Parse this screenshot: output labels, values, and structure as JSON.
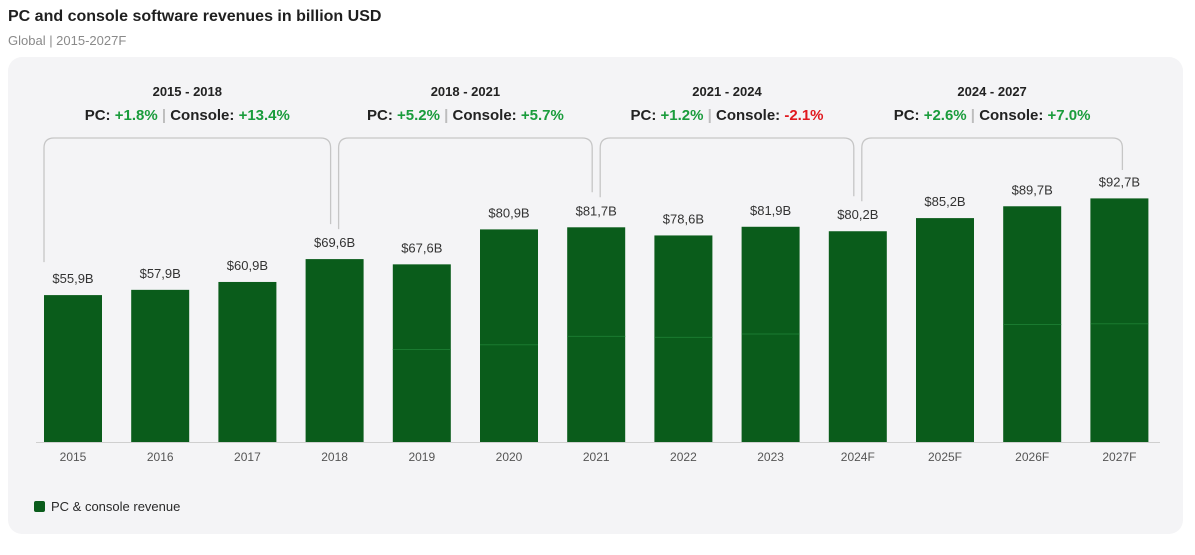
{
  "header": {
    "title": "PC and console software revenues in billion USD",
    "subtitle": "Global | 2015-2027F"
  },
  "legend": {
    "label": "PC & console revenue"
  },
  "colors": {
    "bar": "#0a5c1b",
    "bar_line": "#1a7a30",
    "positive": "#1a9c3c",
    "negative": "#e0191f",
    "bracket": "#c6c6c6"
  },
  "chart_data": {
    "type": "bar",
    "title": "PC and console software revenues in billion USD",
    "categories": [
      "2015",
      "2016",
      "2017",
      "2018",
      "2019",
      "2020",
      "2021",
      "2022",
      "2023",
      "2024F",
      "2025F",
      "2026F",
      "2027F"
    ],
    "values": [
      55.9,
      57.9,
      60.9,
      69.6,
      67.6,
      80.9,
      81.7,
      78.6,
      81.9,
      80.2,
      85.2,
      89.7,
      92.7
    ],
    "value_labels": [
      "$55,9B",
      "$57,9B",
      "$60,9B",
      "$69,6B",
      "$67,6B",
      "$80,9B",
      "$81,7B",
      "$78,6B",
      "$81,9B",
      "$80,2B",
      "$85,2B",
      "$89,7B",
      "$92,7B"
    ],
    "inner_split": [
      null,
      null,
      null,
      null,
      35.2,
      37.0,
      40.2,
      39.8,
      41.1,
      null,
      null,
      44.7,
      45.0
    ],
    "ylim": [
      0,
      100
    ],
    "xlabel": "",
    "ylabel": "",
    "legend": [
      "PC & console revenue"
    ],
    "periods": [
      {
        "range": "2015 - 2018",
        "start": 0,
        "end": 3,
        "pc_label": "PC:",
        "pc": "+1.8%",
        "console_label": "Console:",
        "console": "+13.4%",
        "pc_sign": "positive",
        "console_sign": "positive"
      },
      {
        "range": "2018 - 2021",
        "start": 3,
        "end": 6,
        "pc_label": "PC:",
        "pc": "+5.2%",
        "console_label": "Console:",
        "console": "+5.7%",
        "pc_sign": "positive",
        "console_sign": "positive"
      },
      {
        "range": "2021 - 2024",
        "start": 6,
        "end": 9,
        "pc_label": "PC:",
        "pc": "+1.2%",
        "console_label": "Console:",
        "console": "-2.1%",
        "pc_sign": "positive",
        "console_sign": "negative"
      },
      {
        "range": "2024 - 2027",
        "start": 9,
        "end": 12,
        "pc_label": "PC:",
        "pc": "+2.6%",
        "console_label": "Console:",
        "console": "+7.0%",
        "pc_sign": "positive",
        "console_sign": "positive"
      }
    ]
  }
}
